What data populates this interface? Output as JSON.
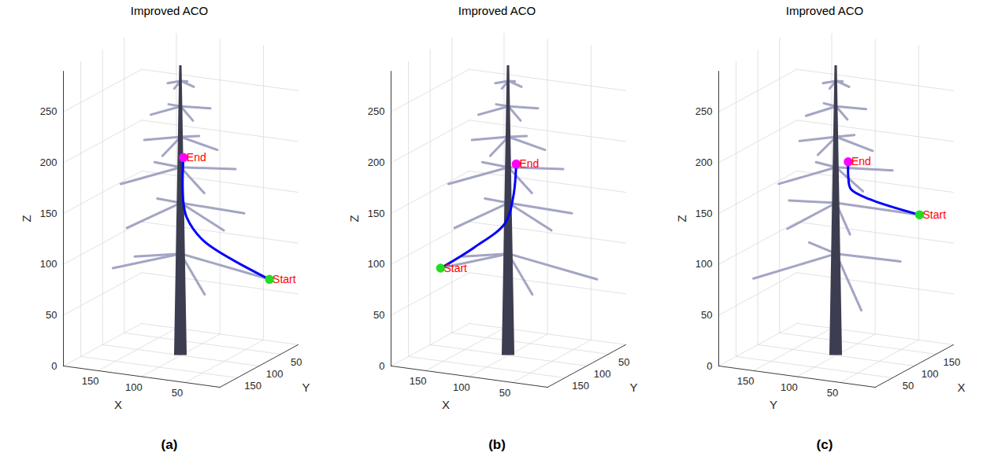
{
  "chart_data": [
    {
      "type": "line3d",
      "title": "Improved ACO",
      "panel": "(a)",
      "xlabel": "X",
      "ylabel": "Y",
      "zlabel": "Z",
      "xlim": [
        10,
        190
      ],
      "ylim": [
        10,
        190
      ],
      "zlim": [
        0,
        290
      ],
      "xticks": [
        50,
        100,
        150
      ],
      "yticks": [
        50,
        100,
        150
      ],
      "zticks": [
        0,
        50,
        100,
        150,
        200,
        250
      ],
      "grid": true,
      "series": [
        {
          "type": "line",
          "color": "#0000ff",
          "x": [
            30,
            81,
            95,
            98,
            97
          ],
          "y": [
            36,
            83,
            96,
            99,
            100
          ],
          "z": [
            68,
            110,
            135,
            155,
            195
          ]
        }
      ],
      "markers": [
        {
          "label": "Start",
          "x": 30,
          "y": 36,
          "z": 68,
          "color": "#22dd22",
          "text_color": "#ff0000"
        },
        {
          "label": "End",
          "x": 97,
          "y": 100,
          "z": 195,
          "color": "#ff00ff",
          "text_color": "#ff0000"
        }
      ],
      "tree": {
        "trunk": {
          "x": 100,
          "y": 100,
          "z": [
            0,
            285
          ]
        },
        "branches": [
          [
            [
              100,
              100,
              100
            ],
            [
              30,
              36,
              68
            ]
          ],
          [
            [
              100,
              100,
              100
            ],
            [
              150,
              156,
              93
            ]
          ],
          [
            [
              100,
              100,
              100
            ],
            [
              172,
              62,
              80
            ]
          ],
          [
            [
              100,
              100,
              100
            ],
            [
              40,
              165,
              82
            ]
          ],
          [
            [
              100,
              100,
              150
            ],
            [
              160,
              34,
              132
            ]
          ],
          [
            [
              100,
              100,
              150
            ],
            [
              38,
              125,
              136
            ]
          ],
          [
            [
              100,
              100,
              150
            ],
            [
              128,
              168,
              138
            ]
          ],
          [
            [
              100,
              100,
              150
            ],
            [
              48,
              58,
              136
            ]
          ],
          [
            [
              100,
              100,
              185
            ],
            [
              150,
              60,
              175
            ]
          ],
          [
            [
              100,
              100,
              185
            ],
            [
              52,
              142,
              175
            ]
          ],
          [
            [
              100,
              100,
              185
            ],
            [
              62,
              50,
              176
            ]
          ],
          [
            [
              100,
              100,
              185
            ],
            [
              146,
              146,
              174
            ]
          ],
          [
            [
              100,
              100,
              215
            ],
            [
              142,
              100,
              207
            ]
          ],
          [
            [
              100,
              100,
              215
            ],
            [
              58,
              100,
              207
            ]
          ],
          [
            [
              100,
              100,
              215
            ],
            [
              100,
              142,
              206
            ]
          ],
          [
            [
              100,
              100,
              215
            ],
            [
              100,
              58,
              206
            ]
          ],
          [
            [
              100,
              100,
              245
            ],
            [
              125,
              78,
              239
            ]
          ],
          [
            [
              100,
              100,
              245
            ],
            [
              75,
              122,
              239
            ]
          ],
          [
            [
              100,
              100,
              245
            ],
            [
              122,
              125,
              240
            ]
          ],
          [
            [
              100,
              100,
              245
            ],
            [
              78,
              76,
              240
            ]
          ],
          [
            [
              100,
              100,
              270
            ],
            [
              115,
              100,
              266
            ]
          ],
          [
            [
              100,
              100,
              270
            ],
            [
              85,
              100,
              266
            ]
          ],
          [
            [
              100,
              100,
              270
            ],
            [
              100,
              115,
              266
            ]
          ],
          [
            [
              100,
              100,
              270
            ],
            [
              100,
              85,
              266
            ]
          ]
        ]
      }
    },
    {
      "type": "line3d",
      "title": "Improved ACO",
      "panel": "(b)",
      "xlabel": "X",
      "ylabel": "Y",
      "zlabel": "Z",
      "xlim": [
        10,
        190
      ],
      "ylim": [
        10,
        190
      ],
      "zlim": [
        0,
        290
      ],
      "xticks": [
        50,
        100,
        150
      ],
      "yticks": [
        50,
        100,
        150
      ],
      "zticks": [
        0,
        50,
        100,
        150,
        200,
        250
      ],
      "grid": true,
      "series": [
        {
          "type": "line",
          "color": "#0000ff",
          "x": [
            150,
            125,
            103,
            97,
            95
          ],
          "y": [
            156,
            128,
            102,
            95,
            92
          ],
          "z": [
            93,
            110,
            130,
            155,
            187
          ]
        }
      ],
      "markers": [
        {
          "label": "Start",
          "x": 150,
          "y": 156,
          "z": 93,
          "color": "#22dd22",
          "text_color": "#ff0000"
        },
        {
          "label": "End",
          "x": 95,
          "y": 92,
          "z": 187,
          "color": "#ff00ff",
          "text_color": "#ff0000"
        }
      ],
      "tree": {
        "trunk": {
          "x": 100,
          "y": 100,
          "z": [
            0,
            285
          ]
        },
        "branches": [
          [
            [
              100,
              100,
              100
            ],
            [
              30,
              36,
              68
            ]
          ],
          [
            [
              100,
              100,
              100
            ],
            [
              150,
              156,
              93
            ]
          ],
          [
            [
              100,
              100,
              100
            ],
            [
              172,
              62,
              80
            ]
          ],
          [
            [
              100,
              100,
              100
            ],
            [
              40,
              165,
              82
            ]
          ],
          [
            [
              100,
              100,
              150
            ],
            [
              160,
              34,
              132
            ]
          ],
          [
            [
              100,
              100,
              150
            ],
            [
              38,
              125,
              136
            ]
          ],
          [
            [
              100,
              100,
              150
            ],
            [
              128,
              168,
              138
            ]
          ],
          [
            [
              100,
              100,
              150
            ],
            [
              48,
              58,
              136
            ]
          ],
          [
            [
              100,
              100,
              185
            ],
            [
              150,
              60,
              175
            ]
          ],
          [
            [
              100,
              100,
              185
            ],
            [
              52,
              142,
              175
            ]
          ],
          [
            [
              100,
              100,
              185
            ],
            [
              62,
              50,
              176
            ]
          ],
          [
            [
              100,
              100,
              185
            ],
            [
              146,
              146,
              174
            ]
          ],
          [
            [
              100,
              100,
              215
            ],
            [
              142,
              100,
              207
            ]
          ],
          [
            [
              100,
              100,
              215
            ],
            [
              58,
              100,
              207
            ]
          ],
          [
            [
              100,
              100,
              215
            ],
            [
              100,
              142,
              206
            ]
          ],
          [
            [
              100,
              100,
              215
            ],
            [
              100,
              58,
              206
            ]
          ],
          [
            [
              100,
              100,
              245
            ],
            [
              125,
              78,
              239
            ]
          ],
          [
            [
              100,
              100,
              245
            ],
            [
              75,
              122,
              239
            ]
          ],
          [
            [
              100,
              100,
              245
            ],
            [
              122,
              125,
              240
            ]
          ],
          [
            [
              100,
              100,
              245
            ],
            [
              78,
              76,
              240
            ]
          ],
          [
            [
              100,
              100,
              270
            ],
            [
              115,
              100,
              266
            ]
          ],
          [
            [
              100,
              100,
              270
            ],
            [
              85,
              100,
              266
            ]
          ],
          [
            [
              100,
              100,
              270
            ],
            [
              100,
              115,
              266
            ]
          ],
          [
            [
              100,
              100,
              270
            ],
            [
              100,
              85,
              266
            ]
          ]
        ]
      }
    },
    {
      "type": "line3d",
      "title": "Improved ACO",
      "panel": "(c)",
      "xlabel": "X",
      "ylabel": "Y",
      "zlabel": "Z",
      "xlim": [
        10,
        190
      ],
      "ylim": [
        10,
        190
      ],
      "zlim": [
        0,
        290
      ],
      "xticks": [
        50,
        100,
        150
      ],
      "yticks": [
        50,
        100,
        150
      ],
      "zticks": [
        0,
        50,
        100,
        150,
        200,
        250
      ],
      "grid": true,
      "series": [
        {
          "type": "line",
          "color": "#0000ff",
          "x": [
            160,
            120,
            102,
            100,
            100
          ],
          "y": [
            34,
            70,
            84,
            86,
            86
          ],
          "z": [
            132,
            152,
            165,
            178,
            192
          ]
        }
      ],
      "markers": [
        {
          "label": "Start",
          "x": 160,
          "y": 34,
          "z": 132,
          "color": "#22dd22",
          "text_color": "#ff0000"
        },
        {
          "label": "End",
          "x": 100,
          "y": 86,
          "z": 192,
          "color": "#ff00ff",
          "text_color": "#ff0000"
        }
      ],
      "tree": {
        "trunk": {
          "x": 100,
          "y": 100,
          "z": [
            0,
            285
          ]
        },
        "branches": [
          [
            [
              100,
              100,
              100
            ],
            [
              30,
              36,
              68
            ]
          ],
          [
            [
              100,
              100,
              100
            ],
            [
              150,
              156,
              93
            ]
          ],
          [
            [
              100,
              100,
              100
            ],
            [
              172,
              62,
              80
            ]
          ],
          [
            [
              100,
              100,
              100
            ],
            [
              40,
              165,
              82
            ]
          ],
          [
            [
              100,
              100,
              150
            ],
            [
              160,
              34,
              132
            ]
          ],
          [
            [
              100,
              100,
              150
            ],
            [
              38,
              125,
              136
            ]
          ],
          [
            [
              100,
              100,
              150
            ],
            [
              128,
              168,
              138
            ]
          ],
          [
            [
              100,
              100,
              150
            ],
            [
              48,
              58,
              136
            ]
          ],
          [
            [
              100,
              100,
              185
            ],
            [
              150,
              60,
              175
            ]
          ],
          [
            [
              100,
              100,
              185
            ],
            [
              52,
              142,
              175
            ]
          ],
          [
            [
              100,
              100,
              185
            ],
            [
              62,
              50,
              176
            ]
          ],
          [
            [
              100,
              100,
              185
            ],
            [
              146,
              146,
              174
            ]
          ],
          [
            [
              100,
              100,
              215
            ],
            [
              142,
              100,
              207
            ]
          ],
          [
            [
              100,
              100,
              215
            ],
            [
              58,
              100,
              207
            ]
          ],
          [
            [
              100,
              100,
              215
            ],
            [
              100,
              142,
              206
            ]
          ],
          [
            [
              100,
              100,
              215
            ],
            [
              100,
              58,
              206
            ]
          ],
          [
            [
              100,
              100,
              245
            ],
            [
              125,
              78,
              239
            ]
          ],
          [
            [
              100,
              100,
              245
            ],
            [
              75,
              122,
              239
            ]
          ],
          [
            [
              100,
              100,
              245
            ],
            [
              122,
              125,
              240
            ]
          ],
          [
            [
              100,
              100,
              245
            ],
            [
              78,
              76,
              240
            ]
          ],
          [
            [
              100,
              100,
              270
            ],
            [
              115,
              100,
              266
            ]
          ],
          [
            [
              100,
              100,
              270
            ],
            [
              85,
              100,
              266
            ]
          ],
          [
            [
              100,
              100,
              270
            ],
            [
              100,
              115,
              266
            ]
          ],
          [
            [
              100,
              100,
              270
            ],
            [
              100,
              85,
              266
            ]
          ]
        ]
      }
    }
  ]
}
